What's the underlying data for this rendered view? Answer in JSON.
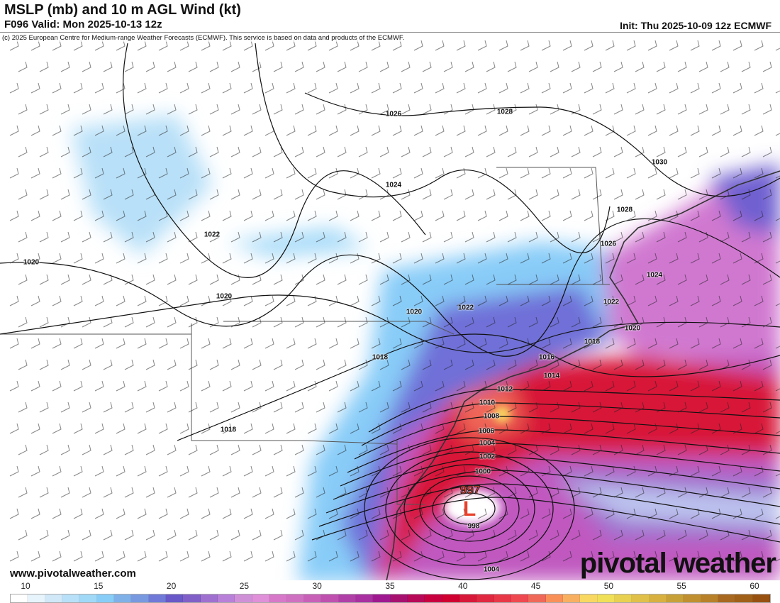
{
  "header": {
    "title": "MSLP (mb) and 10 m AGL Wind (kt)",
    "valid": "F096 Valid: Mon 2025-10-13 12z",
    "init": "Init: Thu 2025-10-09 12z ECMWF",
    "copyright": "(c) 2025 European Centre for Medium-range Weather Forecasts (ECMWF). This service is based on data and products of the ECMWF."
  },
  "map": {
    "isobar_labels": [
      "1026",
      "1028",
      "1030",
      "1024",
      "1028",
      "1022",
      "1026",
      "1020",
      "1024",
      "1020",
      "1022",
      "1020",
      "1022",
      "1020",
      "1018",
      "1018",
      "1016",
      "1014",
      "1012",
      "1010",
      "1008",
      "1006",
      "1004",
      "1002",
      "1000",
      "998",
      "1004",
      "1018"
    ],
    "low_center": {
      "symbol": "L",
      "pressure": "997",
      "color": "#e8402a"
    }
  },
  "branding": {
    "url": "www.pivotalweather.com",
    "logo": "pivotal weather"
  },
  "colorbar": {
    "unit": "kt",
    "ticks": [
      "10",
      "15",
      "20",
      "25",
      "30",
      "35",
      "40",
      "45",
      "50",
      "55",
      "60"
    ],
    "colors": [
      "#ffffff",
      "#e8f4fc",
      "#d0e8f8",
      "#b8e0f8",
      "#a0d8f8",
      "#88ccf8",
      "#80b0e8",
      "#7898e0",
      "#7078d8",
      "#6858c8",
      "#8060c8",
      "#a070d0",
      "#b880d8",
      "#d090d8",
      "#e090d8",
      "#d878c8",
      "#d070c0",
      "#c860b8",
      "#c050b0",
      "#b040a8",
      "#a830a0",
      "#a01890",
      "#a81070",
      "#b80858",
      "#c80040",
      "#d00030",
      "#d81838",
      "#e02840",
      "#e83848",
      "#f04850",
      "#f06858",
      "#f89058",
      "#f8b060",
      "#f8d860",
      "#f0e058",
      "#e8d050",
      "#e0c048",
      "#d8b040",
      "#c8a038",
      "#c09030",
      "#b88028",
      "#a86820",
      "#a06018",
      "#985010"
    ]
  }
}
